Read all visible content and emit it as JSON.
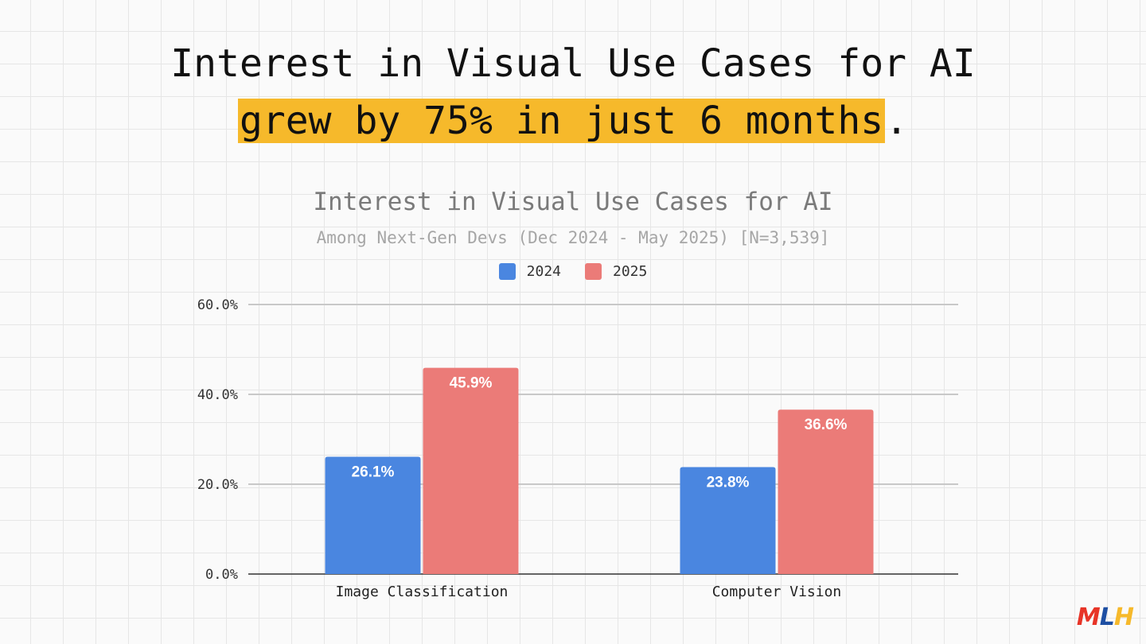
{
  "headline": {
    "line1": "Interest in Visual Use Cases for AI",
    "highlight": "grew by 75% in just 6 months",
    "suffix": ".",
    "highlight_color": "#f6b92b"
  },
  "logo": {
    "letters": [
      "M",
      "L",
      "H"
    ],
    "colors": [
      "#e73427",
      "#1e4fa3",
      "#f6b92b"
    ]
  },
  "chart_data": {
    "type": "bar",
    "title": "Interest in Visual Use Cases for AI",
    "subtitle": "Among Next-Gen Devs (Dec 2024 - May 2025) [N=3,539]",
    "categories": [
      "Image Classification",
      "Computer Vision"
    ],
    "series": [
      {
        "name": "2024",
        "values": [
          26.1,
          23.8
        ],
        "color": "#4a86e0",
        "labels": [
          "26.1%",
          "23.8%"
        ]
      },
      {
        "name": "2025",
        "values": [
          45.9,
          36.6
        ],
        "color": "#eb7b78",
        "labels": [
          "45.9%",
          "36.6%"
        ]
      }
    ],
    "ylim": [
      0,
      60
    ],
    "yticks": [
      0,
      20,
      40,
      60
    ],
    "ytick_labels": [
      "0.0%",
      "20.0%",
      "40.0%",
      "60.0%"
    ],
    "grid": true,
    "legend_position": "top-center"
  }
}
